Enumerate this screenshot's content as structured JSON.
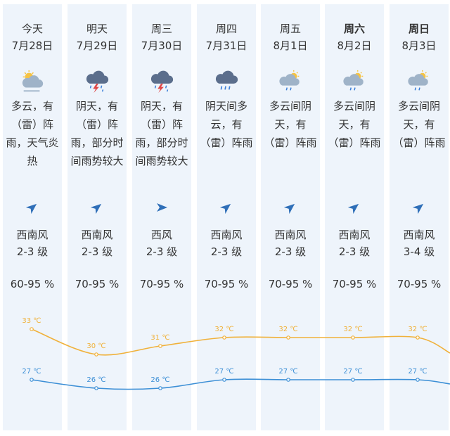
{
  "days": [
    {
      "name": "今天",
      "bold": false,
      "date": "7月28日",
      "icon": "partly-cloudy-rain-icon",
      "desc": "多云，有（雷）阵雨，天气炎热",
      "wind_dir_icon": "wind-arrow-northeast-icon",
      "wind": "西南风",
      "level": "2-3 级",
      "humidity": "60-95 %",
      "high": "33 ℃",
      "low": "27 ℃"
    },
    {
      "name": "明天",
      "bold": false,
      "date": "7月29日",
      "icon": "thunderstorm-icon",
      "desc": "阴天，有（雷）阵雨，部分时间雨势较大",
      "wind_dir_icon": "wind-arrow-northeast-icon",
      "wind": "西南风",
      "level": "2-3 级",
      "humidity": "70-95 %",
      "high": "30 ℃",
      "low": "26 ℃"
    },
    {
      "name": "周三",
      "bold": false,
      "date": "7月30日",
      "icon": "thunderstorm-icon",
      "desc": "阴天，有（雷）阵雨，部分时间雨势较大",
      "wind_dir_icon": "wind-arrow-east-icon",
      "wind": "西风",
      "level": "2-3 级",
      "humidity": "70-95 %",
      "high": "31 ℃",
      "low": "26 ℃"
    },
    {
      "name": "周四",
      "bold": false,
      "date": "7月31日",
      "icon": "cloud-rain-icon",
      "desc": "阴天间多云，有（雷）阵雨",
      "wind_dir_icon": "wind-arrow-northeast-icon",
      "wind": "西南风",
      "level": "2-3 级",
      "humidity": "70-95 %",
      "high": "32 ℃",
      "low": "27 ℃"
    },
    {
      "name": "周五",
      "bold": false,
      "date": "8月1日",
      "icon": "sun-cloud-rain-icon",
      "desc": "多云间阴天，有（雷）阵雨",
      "wind_dir_icon": "wind-arrow-northeast-icon",
      "wind": "西南风",
      "level": "2-3 级",
      "humidity": "70-95 %",
      "high": "32 ℃",
      "low": "27 ℃"
    },
    {
      "name": "周六",
      "bold": true,
      "date": "8月2日",
      "icon": "sun-cloud-rain-icon",
      "desc": "多云间阴天，有（雷）阵雨",
      "wind_dir_icon": "wind-arrow-northeast-icon",
      "wind": "西南风",
      "level": "2-3 级",
      "humidity": "70-95 %",
      "high": "32 ℃",
      "low": "27 ℃"
    },
    {
      "name": "周日",
      "bold": true,
      "date": "8月3日",
      "icon": "sun-cloud-rain-icon",
      "desc": "多云间阴天，有（雷）阵雨",
      "wind_dir_icon": "wind-arrow-northeast-icon",
      "wind": "西南风",
      "level": "3-4 级",
      "humidity": "70-95 %",
      "high": "32 ℃",
      "low": "27 ℃"
    }
  ],
  "temperature": {
    "high": [
      33,
      30,
      31,
      32,
      32,
      32,
      32
    ],
    "low": [
      27,
      26,
      26,
      27,
      27,
      27,
      27
    ],
    "high_color": "#f0b13a",
    "low_color": "#3c8fd6"
  },
  "colors": {
    "column_shade": "#eef4fb",
    "icon_cloud": "#9fb3c8",
    "icon_dark_cloud": "#5b6e8c",
    "icon_sun": "#f6c343",
    "icon_rain": "#3b7fd8",
    "icon_bolt": "#e04848",
    "wind_arrow": "#2f6fb8"
  }
}
